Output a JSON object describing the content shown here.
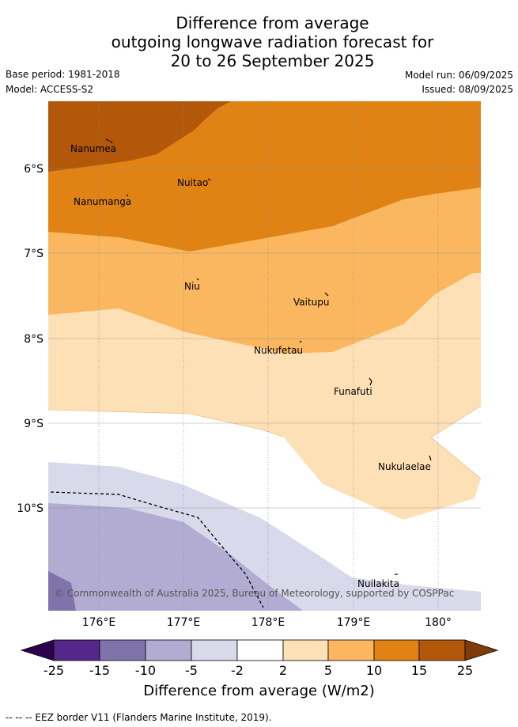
{
  "title": {
    "line1": "Difference from average",
    "line2": "outgoing longwave radiation forecast for",
    "line3": "20 to 26 September 2025"
  },
  "meta": {
    "base_period": "Base period: 1981-2018",
    "model": "Model: ACCESS-S2",
    "model_run": "Model run: 06/09/2025",
    "issued": "Issued: 08/09/2025"
  },
  "map": {
    "lat_labels": [
      "6°S",
      "7°S",
      "8°S",
      "9°S",
      "10°S"
    ],
    "lon_labels": [
      "176°E",
      "177°E",
      "178°E",
      "179°E",
      "180°"
    ],
    "places": [
      {
        "name": "Nanumea"
      },
      {
        "name": "Nuitao"
      },
      {
        "name": "Nanumanga"
      },
      {
        "name": "Niu"
      },
      {
        "name": "Vaitupu"
      },
      {
        "name": "Nukufetau"
      },
      {
        "name": "Funafuti"
      },
      {
        "name": "Nukulaelae"
      },
      {
        "name": "Nuilakita"
      }
    ],
    "copyright": "© Commonwealth of Australia 2025, Bureau of Meteorology, supported by COSPPac",
    "colors": {
      "c15_25": "#b3580a",
      "c10_15": "#e08314",
      "c5_10": "#fab75f",
      "c2_5": "#fee0b6",
      "cm2_2": "#ffffff",
      "cm5_m2": "#d8d9ea",
      "cm10_m5": "#b2abd2",
      "cm15_m10": "#8073ac",
      "cm25_m15": "#542788",
      "over": "#7f3b08",
      "under": "#2d004b"
    }
  },
  "colorbar": {
    "ticks": [
      "-25",
      "-15",
      "-10",
      "-5",
      "-2",
      "2",
      "5",
      "10",
      "15",
      "25"
    ],
    "title": "Difference from average (W/m2)"
  },
  "footnote": "--  --  -- EEZ border V11 (Flanders Marine Institute, 2019)."
}
